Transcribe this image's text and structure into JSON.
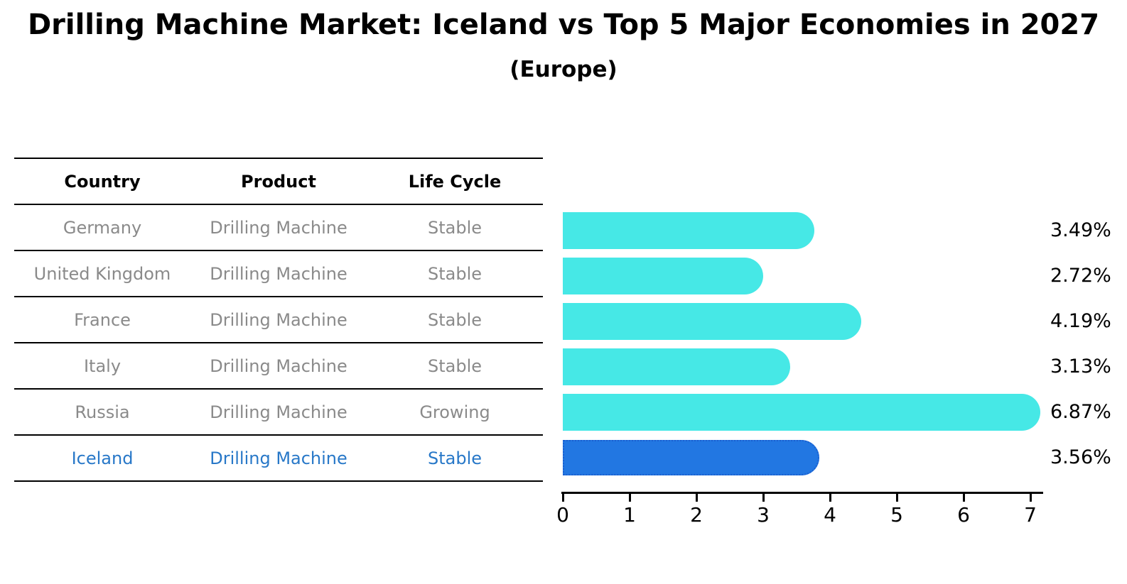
{
  "header": {
    "title": "Drilling Machine Market: Iceland vs Top 5 Major Economies in 2027",
    "subtitle": "(Europe)"
  },
  "table": {
    "columns": [
      "Country",
      "Product",
      "Life Cycle"
    ],
    "rows": [
      {
        "country": "Germany",
        "product": "Drilling Machine",
        "life_cycle": "Stable",
        "highlighted": false
      },
      {
        "country": "United Kingdom",
        "product": "Drilling Machine",
        "life_cycle": "Stable",
        "highlighted": false
      },
      {
        "country": "France",
        "product": "Drilling Machine",
        "life_cycle": "Stable",
        "highlighted": false
      },
      {
        "country": "Italy",
        "product": "Drilling Machine",
        "life_cycle": "Stable",
        "highlighted": false
      },
      {
        "country": "Russia",
        "product": "Drilling Machine",
        "life_cycle": "Growing",
        "highlighted": false
      },
      {
        "country": "Iceland",
        "product": "Drilling Machine",
        "life_cycle": "Stable",
        "highlighted": true
      }
    ]
  },
  "chart_data": {
    "type": "bar",
    "orientation": "horizontal",
    "title": "Drilling Machine Market: Iceland vs Top 5 Major Economies in 2027 (Europe)",
    "categories": [
      "Germany",
      "United Kingdom",
      "France",
      "Italy",
      "Russia",
      "Iceland"
    ],
    "values": [
      3.49,
      2.72,
      4.19,
      3.13,
      6.87,
      3.56
    ],
    "value_labels": [
      "3.49%",
      "2.72%",
      "4.19%",
      "3.13%",
      "6.87%",
      "3.56%"
    ],
    "xlabel": "",
    "ylabel": "",
    "xlim": [
      0,
      7.2
    ],
    "xticks": [
      "0",
      "1",
      "2",
      "3",
      "4",
      "5",
      "6",
      "7"
    ],
    "grid": false,
    "legend": false,
    "bar_color": "#46e8e6",
    "highlight_index": 5,
    "highlight_color": "#2277e2",
    "highlight_border_color": "#1a5fd0"
  },
  "colors": {
    "text": "#000000",
    "row_text": "#8a8a8a",
    "highlight_text": "#2878c8"
  }
}
